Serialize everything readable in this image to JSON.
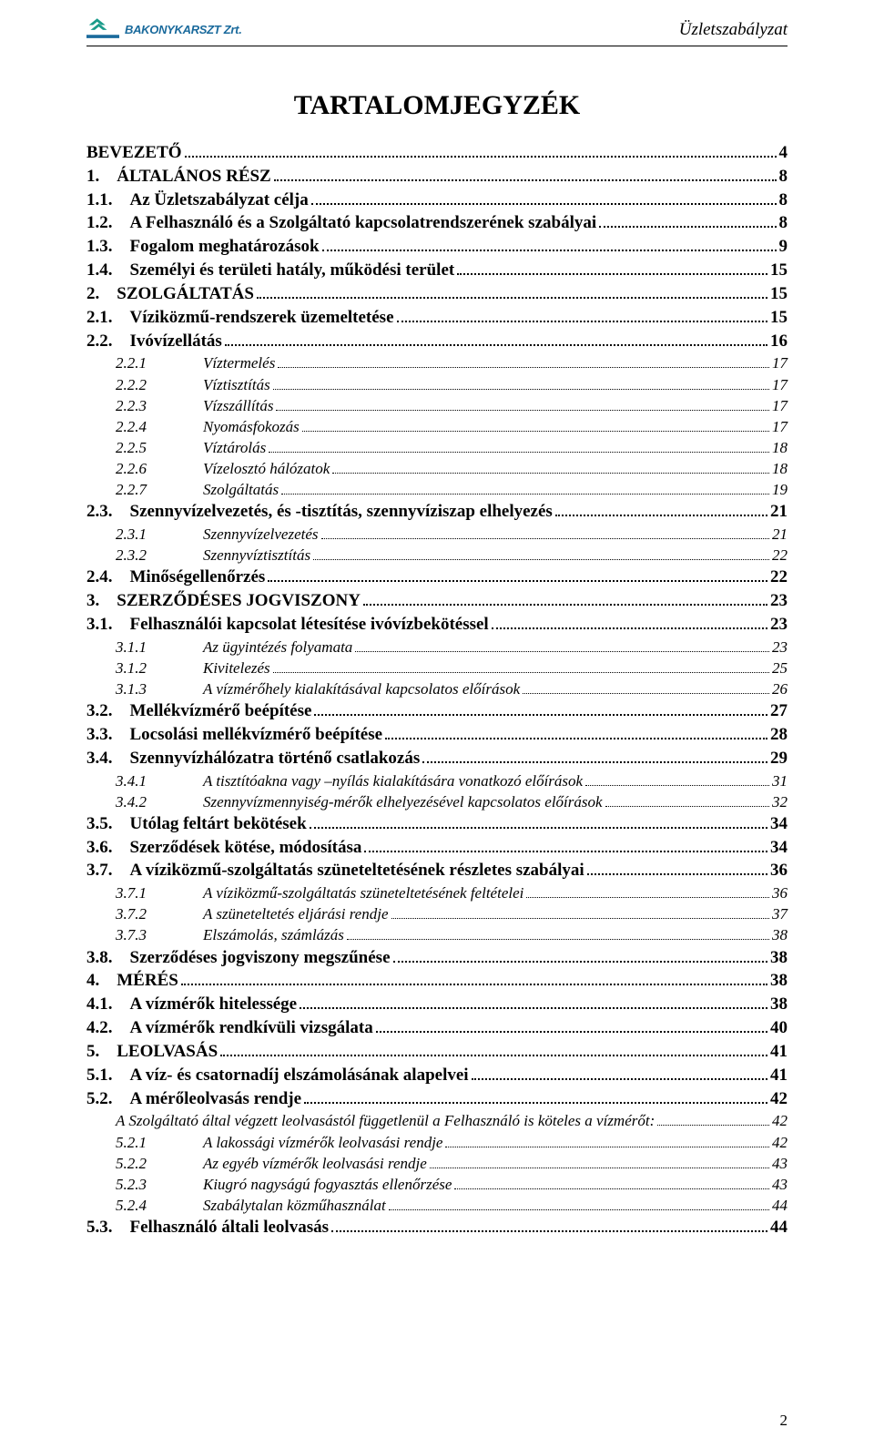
{
  "header": {
    "company": "BAKONYKARSZT Zrt.",
    "doc": "Üzletszabályzat",
    "logo_colors": {
      "teal": "#1a9b8a",
      "blue": "#1a6a9c"
    }
  },
  "title": "TARTALOMJEGYZÉK",
  "page_number": "2",
  "toc": [
    {
      "lvl": 0,
      "num": "",
      "label": "BEVEZETŐ",
      "page": "4"
    },
    {
      "lvl": 0,
      "num": "1.",
      "label": "ÁLTALÁNOS RÉSZ",
      "page": "8"
    },
    {
      "lvl": 1,
      "num": "1.1.",
      "label": "Az Üzletszabályzat célja",
      "page": "8"
    },
    {
      "lvl": 1,
      "num": "1.2.",
      "label": "A Felhasználó és a Szolgáltató kapcsolatrendszerének szabályai",
      "page": "8"
    },
    {
      "lvl": 1,
      "num": "1.3.",
      "label": "Fogalom meghatározások",
      "page": "9"
    },
    {
      "lvl": 1,
      "num": "1.4.",
      "label": "Személyi és területi hatály, működési terület",
      "page": "15"
    },
    {
      "lvl": 0,
      "num": "2.",
      "label": "SZOLGÁLTATÁS",
      "page": "15"
    },
    {
      "lvl": 1,
      "num": "2.1.",
      "label": "Víziközmű-rendszerek üzemeltetése",
      "page": "15"
    },
    {
      "lvl": 1,
      "num": "2.2.",
      "label": "Ivóvízellátás",
      "page": "16"
    },
    {
      "lvl": 2,
      "num": "2.2.1",
      "label": "Víztermelés",
      "page": "17"
    },
    {
      "lvl": 2,
      "num": "2.2.2",
      "label": "Víztisztítás",
      "page": "17"
    },
    {
      "lvl": 2,
      "num": "2.2.3",
      "label": "Vízszállítás",
      "page": "17"
    },
    {
      "lvl": 2,
      "num": "2.2.4",
      "label": "Nyomásfokozás",
      "page": "17"
    },
    {
      "lvl": 2,
      "num": "2.2.5",
      "label": "Víztárolás",
      "page": "18"
    },
    {
      "lvl": 2,
      "num": "2.2.6",
      "label": "Vízelosztó hálózatok",
      "page": "18"
    },
    {
      "lvl": 2,
      "num": "2.2.7",
      "label": "Szolgáltatás",
      "page": "19"
    },
    {
      "lvl": 1,
      "num": "2.3.",
      "label": "Szennyvízelvezetés, és -tisztítás, szennyvíziszap elhelyezés",
      "page": "21"
    },
    {
      "lvl": 2,
      "num": "2.3.1",
      "label": "Szennyvízelvezetés",
      "page": "21"
    },
    {
      "lvl": 2,
      "num": "2.3.2",
      "label": "Szennyvíztisztítás",
      "page": "22"
    },
    {
      "lvl": 1,
      "num": "2.4.",
      "label": "Minőségellenőrzés",
      "page": "22"
    },
    {
      "lvl": 0,
      "num": "3.",
      "label": "SZERZŐDÉSES JOGVISZONY",
      "page": "23"
    },
    {
      "lvl": 1,
      "num": "3.1.",
      "label": "Felhasználói kapcsolat létesítése ivóvízbekötéssel",
      "page": "23"
    },
    {
      "lvl": 2,
      "num": "3.1.1",
      "label": "Az ügyintézés folyamata",
      "page": "23"
    },
    {
      "lvl": 2,
      "num": "3.1.2",
      "label": "Kivitelezés",
      "page": "25"
    },
    {
      "lvl": 2,
      "num": "3.1.3",
      "label": "A vízmérőhely kialakításával kapcsolatos előírások",
      "page": "26"
    },
    {
      "lvl": 1,
      "num": "3.2.",
      "label": "Mellékvízmérő beépítése",
      "page": "27"
    },
    {
      "lvl": 1,
      "num": "3.3.",
      "label": "Locsolási mellékvízmérő beépítése",
      "page": "28"
    },
    {
      "lvl": 1,
      "num": "3.4.",
      "label": "Szennyvízhálózatra történő csatlakozás",
      "page": "29"
    },
    {
      "lvl": 2,
      "num": "3.4.1",
      "label": "A tisztítóakna vagy –nyílás kialakítására vonatkozó előírások",
      "page": "31"
    },
    {
      "lvl": 2,
      "num": "3.4.2",
      "label": "Szennyvízmennyiség-mérők elhelyezésével kapcsolatos előírások",
      "page": "32"
    },
    {
      "lvl": 1,
      "num": "3.5.",
      "label": "Utólag feltárt bekötések",
      "page": "34"
    },
    {
      "lvl": 1,
      "num": "3.6.",
      "label": "Szerződések kötése, módosítása",
      "page": "34"
    },
    {
      "lvl": 1,
      "num": "3.7.",
      "label": "A víziközmű-szolgáltatás szüneteltetésének részletes szabályai",
      "page": "36"
    },
    {
      "lvl": 2,
      "num": "3.7.1",
      "label": "A víziközmű-szolgáltatás szüneteltetésének feltételei",
      "page": "36"
    },
    {
      "lvl": 2,
      "num": "3.7.2",
      "label": "A szüneteltetés eljárási rendje",
      "page": "37"
    },
    {
      "lvl": 2,
      "num": "3.7.3",
      "label": "Elszámolás, számlázás",
      "page": "38"
    },
    {
      "lvl": 1,
      "num": "3.8.",
      "label": "Szerződéses jogviszony megszűnése",
      "page": "38"
    },
    {
      "lvl": 0,
      "num": "4.",
      "label": "MÉRÉS",
      "page": "38"
    },
    {
      "lvl": 1,
      "num": "4.1.",
      "label": "A vízmérők hitelessége",
      "page": "38"
    },
    {
      "lvl": 1,
      "num": "4.2.",
      "label": "A vízmérők rendkívüli vizsgálata",
      "page": "40"
    },
    {
      "lvl": 0,
      "num": "5.",
      "label": "LEOLVASÁS",
      "page": "41"
    },
    {
      "lvl": 1,
      "num": "5.1.",
      "label": "A víz- és csatornadíj elszámolásának alapelvei",
      "page": "41"
    },
    {
      "lvl": 1,
      "num": "5.2.",
      "label": "A mérőleolvasás rendje",
      "page": "42"
    },
    {
      "note": true,
      "label": "A Szolgáltató által végzett leolvasástól függetlenül a Felhasználó is köteles a vízmérőt:",
      "page": "42"
    },
    {
      "lvl": 2,
      "num": "5.2.1",
      "label": "A lakossági vízmérők leolvasási rendje",
      "page": "42"
    },
    {
      "lvl": 2,
      "num": "5.2.2",
      "label": "Az egyéb vízmérők leolvasási rendje",
      "page": "43"
    },
    {
      "lvl": 2,
      "num": "5.2.3",
      "label": "Kiugró nagyságú fogyasztás ellenőrzése",
      "page": "43"
    },
    {
      "lvl": 2,
      "num": "5.2.4",
      "label": "Szabálytalan közműhasználat",
      "page": "44"
    },
    {
      "lvl": 1,
      "num": "5.3.",
      "label": "Felhasználó általi leolvasás",
      "page": "44"
    }
  ]
}
